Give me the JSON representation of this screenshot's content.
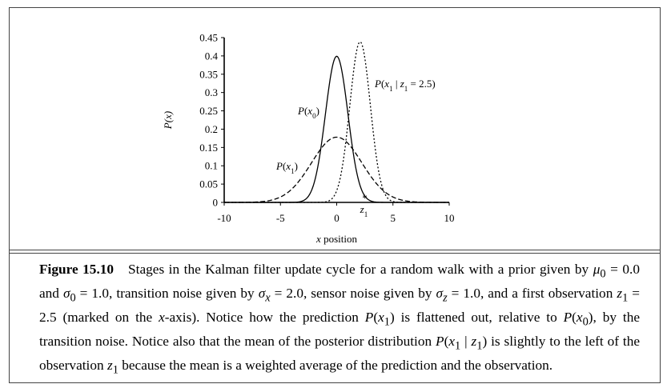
{
  "chart_data": {
    "type": "line",
    "xlabel": "x position",
    "ylabel": "P(x)",
    "xlim": [
      -10,
      10
    ],
    "ylim": [
      0,
      0.45
    ],
    "x_ticks": [
      "-10",
      "-5",
      "0",
      "5",
      "10"
    ],
    "y_ticks": [
      "0",
      "0.05",
      "0.1",
      "0.15",
      "0.2",
      "0.25",
      "0.3",
      "0.35",
      "0.4",
      "0.45"
    ],
    "series": [
      {
        "name": "P(x0)",
        "style": "solid",
        "mean": 0.0,
        "sd": 1.0,
        "x": [
          -4,
          -3,
          -2,
          -1.5,
          -1,
          -0.5,
          0,
          0.5,
          1,
          1.5,
          2,
          3,
          4
        ],
        "y": [
          0.0001,
          0.0044,
          0.054,
          0.13,
          0.242,
          0.352,
          0.399,
          0.352,
          0.242,
          0.13,
          0.054,
          0.0044,
          0.0001
        ]
      },
      {
        "name": "P(x1)",
        "style": "dashed",
        "mean": 0.0,
        "sd": 2.24,
        "x": [
          -8,
          -6,
          -4,
          -2,
          -1,
          0,
          1,
          2,
          4,
          6,
          8
        ],
        "y": [
          0.0003,
          0.005,
          0.036,
          0.12,
          0.16,
          0.178,
          0.16,
          0.12,
          0.036,
          0.005,
          0.0003
        ]
      },
      {
        "name": "P(x1 | z1 = 2.5)",
        "style": "dotted",
        "mean": 2.08,
        "sd": 0.91,
        "x": [
          -1,
          0,
          1,
          1.5,
          2,
          2.08,
          2.5,
          3,
          4,
          5
        ],
        "y": [
          0.0014,
          0.034,
          0.218,
          0.348,
          0.435,
          0.438,
          0.394,
          0.263,
          0.047,
          0.0015
        ]
      }
    ],
    "annotations": [
      {
        "text": "P(x0)",
        "target_series": "P(x0)"
      },
      {
        "text": "P(x1)",
        "target_series": "P(x1)"
      },
      {
        "text": "P(x1 | z1 = 2.5)",
        "target_series": "P(x1 | z1 = 2.5)"
      },
      {
        "text": "z1",
        "marker": "*",
        "x": 2.5
      }
    ],
    "grid": false
  },
  "caption": {
    "label": "Figure 15.10",
    "text": "Stages in the Kalman filter update cycle for a random walk with a prior given by μ0 = 0.0 and σ0 = 1.0, transition noise given by σx = 2.0, sensor noise given by σz = 1.0, and a first observation z1 = 2.5 (marked on the x-axis). Notice how the prediction P(x1) is flattened out, relative to P(x0), by the transition noise. Notice also that the mean of the posterior distribution P(x1 | z1) is slightly to the left of the observation z1 because the mean is a weighted average of the prediction and the observation."
  }
}
